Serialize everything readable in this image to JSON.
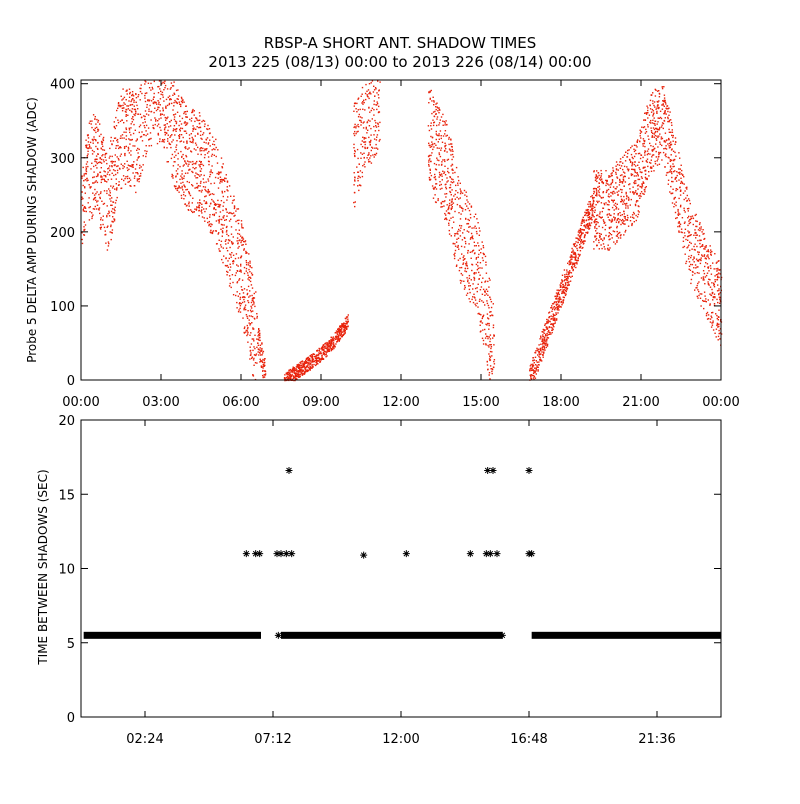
{
  "header": {
    "title": "RBSP-A SHORT ANT. SHADOW TIMES",
    "subtitle": "2013 225 (08/13) 00:00 to 2013 226 (08/14) 00:00"
  },
  "colors": {
    "scatter": "#e8220a",
    "ink": "#000000",
    "background": "#ffffff"
  },
  "chart_data": [
    {
      "type": "scatter",
      "ylabel": "Probe 5 DELTA AMP DURING SHADOW (ADC)",
      "xlabel": "",
      "xlim_hours": [
        0,
        24
      ],
      "ylim": [
        0,
        405
      ],
      "x_ticks": [
        {
          "label": "00:00",
          "hour": 0
        },
        {
          "label": "03:00",
          "hour": 3
        },
        {
          "label": "06:00",
          "hour": 6
        },
        {
          "label": "09:00",
          "hour": 9
        },
        {
          "label": "12:00",
          "hour": 12
        },
        {
          "label": "15:00",
          "hour": 15
        },
        {
          "label": "18:00",
          "hour": 18
        },
        {
          "label": "21:00",
          "hour": 21
        },
        {
          "label": "00:00",
          "hour": 24
        }
      ],
      "y_ticks": [
        0,
        100,
        200,
        300,
        400
      ],
      "grid": false,
      "legend": "none",
      "series": [
        {
          "color": "#e8220a",
          "segments": [
            {
              "hour_start": 0.0,
              "hour_end": 6.6,
              "points": [
                [
                  0.0,
                  250
                ],
                [
                  0.5,
                  300
                ],
                [
                  1.0,
                  240
                ],
                [
                  1.5,
                  330
                ],
                [
                  2.0,
                  320
                ],
                [
                  2.5,
                  380
                ],
                [
                  3.0,
                  390
                ],
                [
                  3.5,
                  330
                ],
                [
                  4.0,
                  300
                ],
                [
                  4.5,
                  290
                ],
                [
                  5.0,
                  260
                ],
                [
                  5.5,
                  200
                ],
                [
                  6.0,
                  150
                ],
                [
                  6.3,
                  100
                ],
                [
                  6.6,
                  40
                ]
              ],
              "spread": 140
            },
            {
              "hour_start": 6.6,
              "hour_end": 6.9,
              "points": [
                [
                  6.6,
                  60
                ],
                [
                  6.9,
                  5
                ]
              ],
              "spread": 40
            },
            {
              "hour_start": 7.6,
              "hour_end": 10.0,
              "points": [
                [
                  7.6,
                  0
                ],
                [
                  8.2,
                  15
                ],
                [
                  8.8,
                  30
                ],
                [
                  9.4,
                  50
                ],
                [
                  10.0,
                  80
                ]
              ],
              "spread": 20
            },
            {
              "hour_start": 10.2,
              "hour_end": 11.2,
              "points": [
                [
                  10.2,
                  300
                ],
                [
                  10.6,
                  350
                ],
                [
                  11.2,
                  380
                ]
              ],
              "spread": 140
            },
            {
              "hour_start": 13.0,
              "hour_end": 15.5,
              "points": [
                [
                  13.0,
                  330
                ],
                [
                  13.7,
                  280
                ],
                [
                  14.2,
                  200
                ],
                [
                  14.8,
                  160
                ],
                [
                  15.3,
                  70
                ],
                [
                  15.5,
                  20
                ]
              ],
              "spread": 140
            },
            {
              "hour_start": 16.8,
              "hour_end": 19.2,
              "points": [
                [
                  16.8,
                  0
                ],
                [
                  17.3,
                  50
                ],
                [
                  17.8,
                  100
                ],
                [
                  18.3,
                  150
                ],
                [
                  18.8,
                  200
                ],
                [
                  19.2,
                  240
                ]
              ],
              "spread": 40
            },
            {
              "hour_start": 19.2,
              "hour_end": 24.0,
              "points": [
                [
                  19.2,
                  230
                ],
                [
                  19.8,
                  230
                ],
                [
                  20.3,
                  250
                ],
                [
                  20.8,
                  270
                ],
                [
                  21.3,
                  330
                ],
                [
                  21.8,
                  350
                ],
                [
                  22.3,
                  270
                ],
                [
                  22.8,
                  190
                ],
                [
                  23.3,
                  150
                ],
                [
                  23.7,
                  120
                ],
                [
                  24.0,
                  100
                ]
              ],
              "spread": 110
            }
          ]
        }
      ]
    },
    {
      "type": "scatter",
      "ylabel": "TIME BETWEEN SHADOWS (SEC)",
      "xlabel": "",
      "xlim_hours": [
        0,
        24
      ],
      "ylim": [
        0,
        20
      ],
      "x_ticks": [
        {
          "label": "02:24",
          "hour": 2.4
        },
        {
          "label": "07:12",
          "hour": 7.2
        },
        {
          "label": "12:00",
          "hour": 12.0
        },
        {
          "label": "16:48",
          "hour": 16.8
        },
        {
          "label": "21:36",
          "hour": 21.6
        }
      ],
      "y_ticks": [
        0,
        5,
        10,
        15,
        20
      ],
      "grid": false,
      "legend": "none",
      "marker": "asterisk",
      "series": [
        {
          "color": "#000000",
          "baseline_value": 5.5,
          "baseline_ranges": [
            [
              0.1,
              6.75
            ],
            [
              7.5,
              15.8
            ],
            [
              16.9,
              24.0
            ]
          ],
          "points": [
            {
              "hour": 6.2,
              "value": 11.0
            },
            {
              "hour": 6.55,
              "value": 11.0
            },
            {
              "hour": 6.7,
              "value": 11.0
            },
            {
              "hour": 7.35,
              "value": 11.0
            },
            {
              "hour": 7.5,
              "value": 11.0
            },
            {
              "hour": 7.7,
              "value": 11.0
            },
            {
              "hour": 7.9,
              "value": 11.0
            },
            {
              "hour": 7.8,
              "value": 16.6
            },
            {
              "hour": 7.4,
              "value": 5.5
            },
            {
              "hour": 10.6,
              "value": 10.9
            },
            {
              "hour": 12.2,
              "value": 11.0
            },
            {
              "hour": 14.6,
              "value": 11.0
            },
            {
              "hour": 15.2,
              "value": 11.0
            },
            {
              "hour": 15.35,
              "value": 11.0
            },
            {
              "hour": 15.6,
              "value": 11.0
            },
            {
              "hour": 15.25,
              "value": 16.6
            },
            {
              "hour": 15.45,
              "value": 16.6
            },
            {
              "hour": 16.8,
              "value": 16.6
            },
            {
              "hour": 16.8,
              "value": 11.0
            },
            {
              "hour": 16.9,
              "value": 11.0
            },
            {
              "hour": 15.8,
              "value": 5.5
            }
          ]
        }
      ]
    }
  ]
}
